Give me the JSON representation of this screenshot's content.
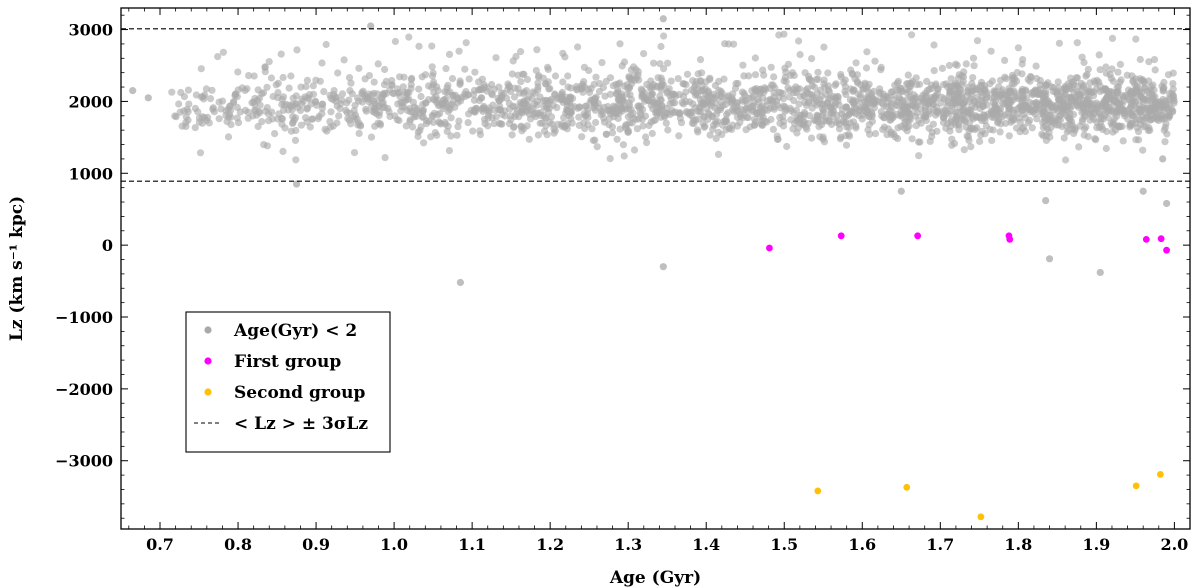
{
  "chart_data": {
    "type": "scatter",
    "xlabel": "Age (Gyr)",
    "ylabel": "Lz (km s⁻¹ kpc)",
    "xlim": [
      0.65,
      2.02
    ],
    "ylim": [
      -3950,
      3300
    ],
    "x_ticks": [
      0.7,
      0.8,
      0.9,
      1.0,
      1.1,
      1.2,
      1.3,
      1.4,
      1.5,
      1.6,
      1.7,
      1.8,
      1.9,
      2.0
    ],
    "x_tick_labels": [
      "0.7",
      "0.8",
      "0.9",
      "1.0",
      "1.1",
      "1.2",
      "1.3",
      "1.4",
      "1.5",
      "1.6",
      "1.7",
      "1.8",
      "1.9",
      "2.0"
    ],
    "y_ticks": [
      -3000,
      -2000,
      -1000,
      0,
      1000,
      2000,
      3000
    ],
    "y_tick_labels": [
      "−3000",
      "−2000",
      "−1000",
      "0",
      "1000",
      "2000",
      "3000"
    ],
    "grid": false,
    "legend_position": "lower-left",
    "series": [
      {
        "name": "Age(Gyr) < 2",
        "color": "#a9a9a9",
        "kind": "dense-cloud",
        "x_range": [
          0.715,
          2.0
        ],
        "y_center": 1950,
        "y_spread": 220,
        "points": [
          {
            "x": 0.665,
            "y": 2150
          },
          {
            "x": 0.685,
            "y": 2050
          },
          {
            "x": 0.875,
            "y": 850
          },
          {
            "x": 1.085,
            "y": -520
          },
          {
            "x": 1.345,
            "y": -300
          },
          {
            "x": 1.65,
            "y": 750
          },
          {
            "x": 1.835,
            "y": 620
          },
          {
            "x": 1.84,
            "y": -190
          },
          {
            "x": 1.905,
            "y": -380
          },
          {
            "x": 1.96,
            "y": 750
          },
          {
            "x": 1.99,
            "y": 580
          },
          {
            "x": 1.985,
            "y": 1200
          },
          {
            "x": 1.345,
            "y": 3150
          },
          {
            "x": 0.97,
            "y": 3050
          }
        ]
      },
      {
        "name": "First group",
        "color": "#ff00ff",
        "points": [
          {
            "x": 1.481,
            "y": -40
          },
          {
            "x": 1.573,
            "y": 130
          },
          {
            "x": 1.671,
            "y": 130
          },
          {
            "x": 1.788,
            "y": 130
          },
          {
            "x": 1.789,
            "y": 80
          },
          {
            "x": 1.964,
            "y": 80
          },
          {
            "x": 1.983,
            "y": 90
          },
          {
            "x": 1.99,
            "y": -70
          }
        ]
      },
      {
        "name": "Second group",
        "color": "#ffc107",
        "points": [
          {
            "x": 1.543,
            "y": -3420
          },
          {
            "x": 1.657,
            "y": -3370
          },
          {
            "x": 1.752,
            "y": -3780
          },
          {
            "x": 1.951,
            "y": -3350
          },
          {
            "x": 1.982,
            "y": -3190
          }
        ]
      }
    ],
    "reference_lines": {
      "name": "< Lz > ± 3σLz",
      "style": "dashed",
      "color": "#000000",
      "values": [
        3010,
        890
      ]
    }
  },
  "legend": {
    "items": [
      {
        "label": "Age(Gyr) < 2",
        "marker": "dot",
        "color": "#a9a9a9"
      },
      {
        "label": "First group",
        "marker": "dot",
        "color": "#ff00ff"
      },
      {
        "label": "Second group",
        "marker": "dot",
        "color": "#ffc107"
      },
      {
        "label": "< Lz > ± 3σLz",
        "marker": "dash",
        "color": "#000000"
      }
    ]
  }
}
